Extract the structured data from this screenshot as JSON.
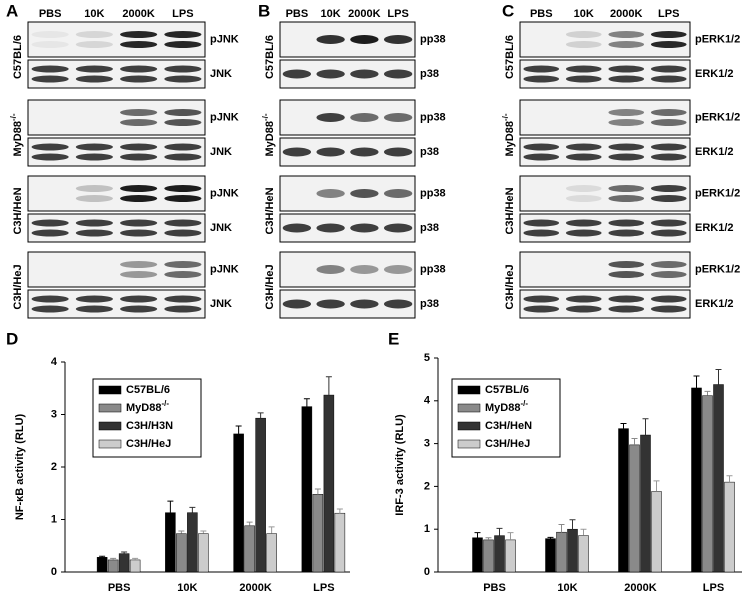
{
  "blots": [
    {
      "label": "A",
      "lanes": [
        "PBS",
        "10K",
        "2000K",
        "LPS"
      ],
      "strains": [
        {
          "name": "C57BL/6",
          "rows": [
            "pJNK",
            "JNK"
          ]
        },
        {
          "name": "MyD88",
          "sup": "-/-",
          "rows": [
            "pJNK",
            "JNK"
          ]
        },
        {
          "name": "C3H/HeN",
          "rows": [
            "pJNK",
            "JNK"
          ]
        },
        {
          "name": "C3H/HeJ",
          "rows": [
            "pJNK",
            "JNK"
          ]
        }
      ]
    },
    {
      "label": "B",
      "lanes": [
        "PBS",
        "10K",
        "2000K",
        "LPS"
      ],
      "strains": [
        {
          "name": "C57BL/6",
          "rows": [
            "pp38",
            "p38"
          ]
        },
        {
          "name": "MyD88",
          "sup": "-/-",
          "rows": [
            "pp38",
            "p38"
          ]
        },
        {
          "name": "C3H/HeN",
          "rows": [
            "pp38",
            "p38"
          ]
        },
        {
          "name": "C3H/HeJ",
          "rows": [
            "pp38",
            "p38"
          ]
        }
      ]
    },
    {
      "label": "C",
      "lanes": [
        "PBS",
        "10K",
        "2000K",
        "LPS"
      ],
      "strains": [
        {
          "name": "C57BL/6",
          "rows": [
            "pERK1/2",
            "ERK1/2"
          ]
        },
        {
          "name": "MyD88",
          "sup": "-/-",
          "rows": [
            "pERK1/2",
            "ERK1/2"
          ]
        },
        {
          "name": "C3H/HeN",
          "rows": [
            "pERK1/2",
            "ERK1/2"
          ]
        },
        {
          "name": "C3H/HeJ",
          "rows": [
            "pERK1/2",
            "ERK1/2"
          ]
        }
      ]
    }
  ],
  "chart_data": [
    {
      "type": "bar",
      "label": "D",
      "y_label": "NF-κB activity (RLU)",
      "categories": [
        "PBS",
        "10K",
        "2000K",
        "LPS"
      ],
      "ylim": [
        0,
        4
      ],
      "yticks": [
        0,
        1,
        2,
        3,
        4
      ],
      "series": [
        {
          "name": "C57BL/6",
          "color": "#000000",
          "values": [
            0.28,
            1.13,
            2.63,
            3.15
          ],
          "errors": [
            0.02,
            0.22,
            0.15,
            0.15
          ]
        },
        {
          "name": "MyD88",
          "name_sup": "-/-",
          "color": "#8a8a8a",
          "values": [
            0.23,
            0.73,
            0.88,
            1.48
          ],
          "errors": [
            0.03,
            0.05,
            0.07,
            0.1
          ]
        },
        {
          "name": "C3H/H3N",
          "color": "#333333",
          "values": [
            0.35,
            1.13,
            2.93,
            3.37
          ],
          "errors": [
            0.03,
            0.1,
            0.1,
            0.35
          ]
        },
        {
          "name": "C3H/HeJ",
          "color": "#cccccc",
          "values": [
            0.23,
            0.73,
            0.73,
            1.12
          ],
          "errors": [
            0.03,
            0.05,
            0.13,
            0.08
          ]
        }
      ]
    },
    {
      "type": "bar",
      "label": "E",
      "y_label": "IRF-3 activity (RLU)",
      "categories": [
        "PBS",
        "10K",
        "2000K",
        "LPS"
      ],
      "ylim": [
        0,
        5
      ],
      "yticks": [
        0,
        1,
        2,
        3,
        4,
        5
      ],
      "series": [
        {
          "name": "C57BL/6",
          "color": "#000000",
          "values": [
            0.8,
            0.78,
            3.35,
            4.3
          ],
          "errors": [
            0.12,
            0.03,
            0.12,
            0.28
          ]
        },
        {
          "name": "MyD88",
          "name_sup": "-/-",
          "color": "#8a8a8a",
          "values": [
            0.75,
            0.93,
            2.97,
            4.12
          ],
          "errors": [
            0.05,
            0.18,
            0.15,
            0.1
          ]
        },
        {
          "name": "C3H/HeN",
          "color": "#333333",
          "values": [
            0.85,
            1.0,
            3.2,
            4.38
          ],
          "errors": [
            0.17,
            0.22,
            0.38,
            0.35
          ]
        },
        {
          "name": "C3H/HeJ",
          "color": "#cccccc",
          "values": [
            0.75,
            0.85,
            1.88,
            2.1
          ],
          "errors": [
            0.17,
            0.15,
            0.25,
            0.15
          ]
        }
      ]
    }
  ]
}
